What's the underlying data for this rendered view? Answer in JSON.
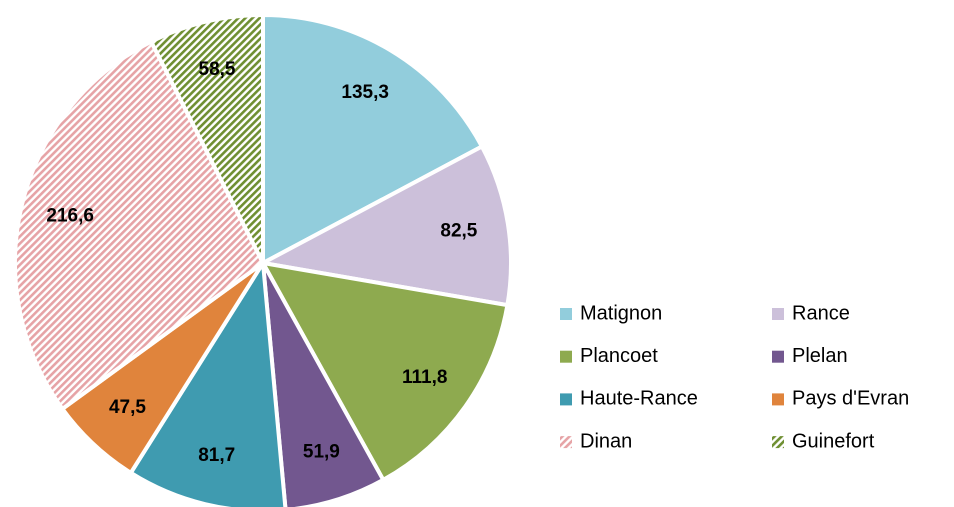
{
  "chart_data": {
    "type": "pie",
    "categories": [
      "Matignon",
      "Rance",
      "Plancoet",
      "Plelan",
      "Haute-Rance",
      "Pays d'Evran",
      "Dinan",
      "Guinefort"
    ],
    "values": [
      135.3,
      82.5,
      111.8,
      51.9,
      81.7,
      47.5,
      216.6,
      58.5
    ],
    "value_labels": [
      "135,3",
      "82,5",
      "111,8",
      "51,9",
      "81,7",
      "47,5",
      "216,6",
      "58,5"
    ],
    "colors": [
      "#92cddc",
      "#ccc0da",
      "#8eaa4f",
      "#72578f",
      "#3f9bb0",
      "#e0843c",
      "#e6a3a6",
      "#6f8f32"
    ],
    "hatched": [
      false,
      false,
      false,
      false,
      false,
      false,
      true,
      true
    ]
  }
}
